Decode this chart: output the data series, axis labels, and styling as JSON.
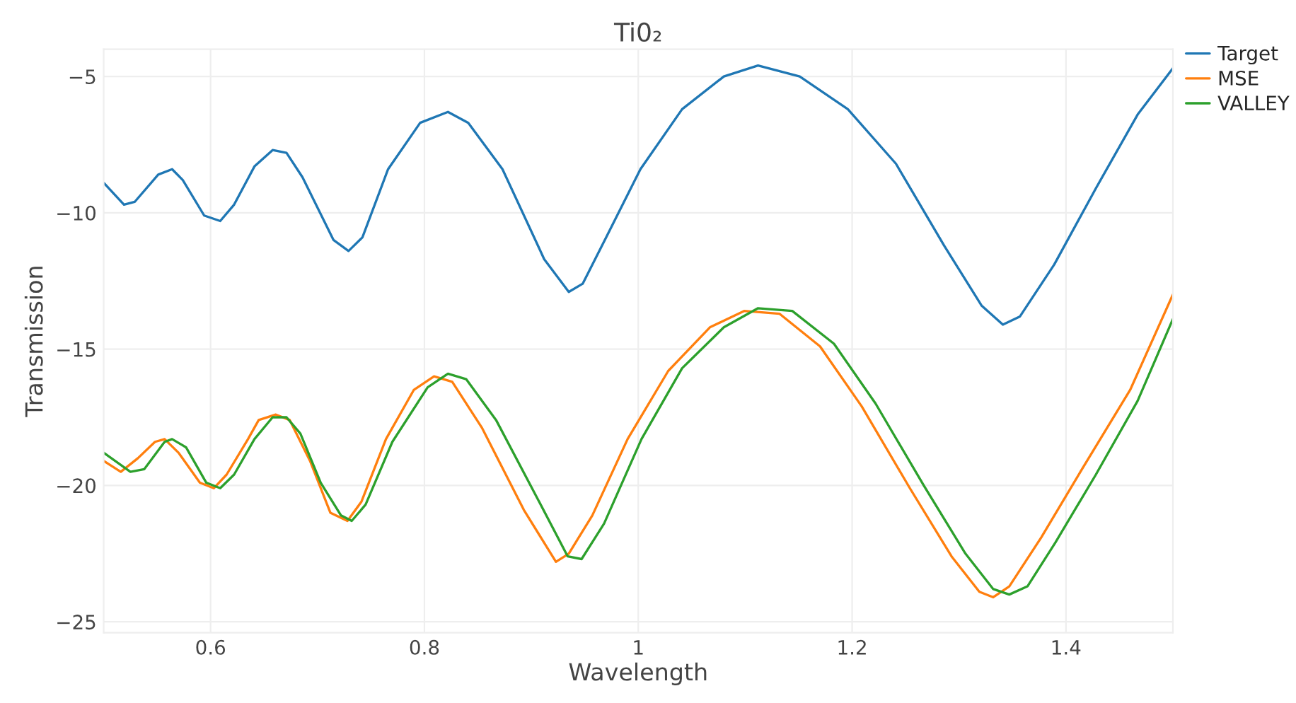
{
  "chart_data": {
    "type": "line",
    "title": "Ti0₂",
    "xlabel": "Wavelength",
    "ylabel": "Transmission",
    "xlim": [
      0.5,
      1.5
    ],
    "ylim": [
      -25.4,
      -4.0
    ],
    "xticks": [
      0.6,
      0.8,
      1,
      1.2,
      1.4
    ],
    "yticks": [
      {
        "value": -25,
        "label": "−25"
      },
      {
        "value": -20,
        "label": "−20"
      },
      {
        "value": -15,
        "label": "−15"
      },
      {
        "value": -10,
        "label": "−10"
      },
      {
        "value": -5,
        "label": "−5"
      }
    ],
    "grid": true,
    "legend": "top right",
    "marker": "none",
    "line_style": "solid",
    "series": [
      {
        "name": "Target",
        "color": "#1f77b4",
        "x": [
          0.5,
          0.519,
          0.529,
          0.551,
          0.564,
          0.574,
          0.594,
          0.609,
          0.622,
          0.641,
          0.658,
          0.671,
          0.686,
          0.715,
          0.729,
          0.742,
          0.766,
          0.796,
          0.822,
          0.841,
          0.873,
          0.912,
          0.935,
          0.948,
          0.97,
          1.002,
          1.041,
          1.08,
          1.112,
          1.151,
          1.196,
          1.241,
          1.286,
          1.321,
          1.341,
          1.357,
          1.389,
          1.428,
          1.467,
          1.5
        ],
        "values": [
          -8.9,
          -9.7,
          -9.6,
          -8.6,
          -8.4,
          -8.8,
          -10.1,
          -10.3,
          -9.7,
          -8.3,
          -7.7,
          -7.8,
          -8.7,
          -11.0,
          -11.4,
          -10.9,
          -8.4,
          -6.7,
          -6.3,
          -6.7,
          -8.4,
          -11.7,
          -12.9,
          -12.6,
          -10.9,
          -8.4,
          -6.2,
          -5.0,
          -4.6,
          -5.0,
          -6.2,
          -8.2,
          -11.2,
          -13.4,
          -14.1,
          -13.8,
          -11.9,
          -9.1,
          -6.4,
          -4.7
        ]
      },
      {
        "name": "MSE",
        "color": "#ff7f0e",
        "x": [
          0.5,
          0.516,
          0.532,
          0.548,
          0.557,
          0.57,
          0.59,
          0.603,
          0.615,
          0.635,
          0.645,
          0.661,
          0.674,
          0.693,
          0.712,
          0.728,
          0.741,
          0.764,
          0.79,
          0.809,
          0.826,
          0.854,
          0.893,
          0.923,
          0.935,
          0.957,
          0.99,
          1.028,
          1.067,
          1.099,
          1.132,
          1.17,
          1.209,
          1.254,
          1.293,
          1.319,
          1.332,
          1.347,
          1.377,
          1.415,
          1.46,
          1.5
        ],
        "values": [
          -19.1,
          -19.5,
          -19.0,
          -18.4,
          -18.3,
          -18.8,
          -19.9,
          -20.1,
          -19.6,
          -18.3,
          -17.6,
          -17.4,
          -17.6,
          -19.1,
          -21.0,
          -21.3,
          -20.6,
          -18.3,
          -16.5,
          -16.0,
          -16.2,
          -17.9,
          -20.9,
          -22.8,
          -22.5,
          -21.1,
          -18.3,
          -15.8,
          -14.2,
          -13.6,
          -13.7,
          -14.9,
          -17.1,
          -20.1,
          -22.6,
          -23.9,
          -24.1,
          -23.7,
          -21.9,
          -19.4,
          -16.5,
          -13.0
        ]
      },
      {
        "name": "VALLEY",
        "color": "#2ca02c",
        "x": [
          0.5,
          0.525,
          0.538,
          0.557,
          0.564,
          0.577,
          0.596,
          0.609,
          0.622,
          0.641,
          0.658,
          0.671,
          0.684,
          0.703,
          0.722,
          0.732,
          0.745,
          0.77,
          0.803,
          0.822,
          0.839,
          0.867,
          0.906,
          0.934,
          0.947,
          0.968,
          1.003,
          1.041,
          1.08,
          1.112,
          1.144,
          1.183,
          1.222,
          1.267,
          1.306,
          1.332,
          1.347,
          1.364,
          1.39,
          1.428,
          1.467,
          1.5
        ],
        "values": [
          -18.8,
          -19.5,
          -19.4,
          -18.4,
          -18.3,
          -18.6,
          -19.9,
          -20.1,
          -19.6,
          -18.3,
          -17.5,
          -17.5,
          -18.1,
          -19.9,
          -21.1,
          -21.3,
          -20.7,
          -18.4,
          -16.4,
          -15.9,
          -16.1,
          -17.6,
          -20.5,
          -22.6,
          -22.7,
          -21.4,
          -18.3,
          -15.7,
          -14.2,
          -13.5,
          -13.6,
          -14.8,
          -17.0,
          -20.0,
          -22.5,
          -23.8,
          -24.0,
          -23.7,
          -22.1,
          -19.6,
          -16.9,
          -13.9
        ]
      }
    ]
  }
}
